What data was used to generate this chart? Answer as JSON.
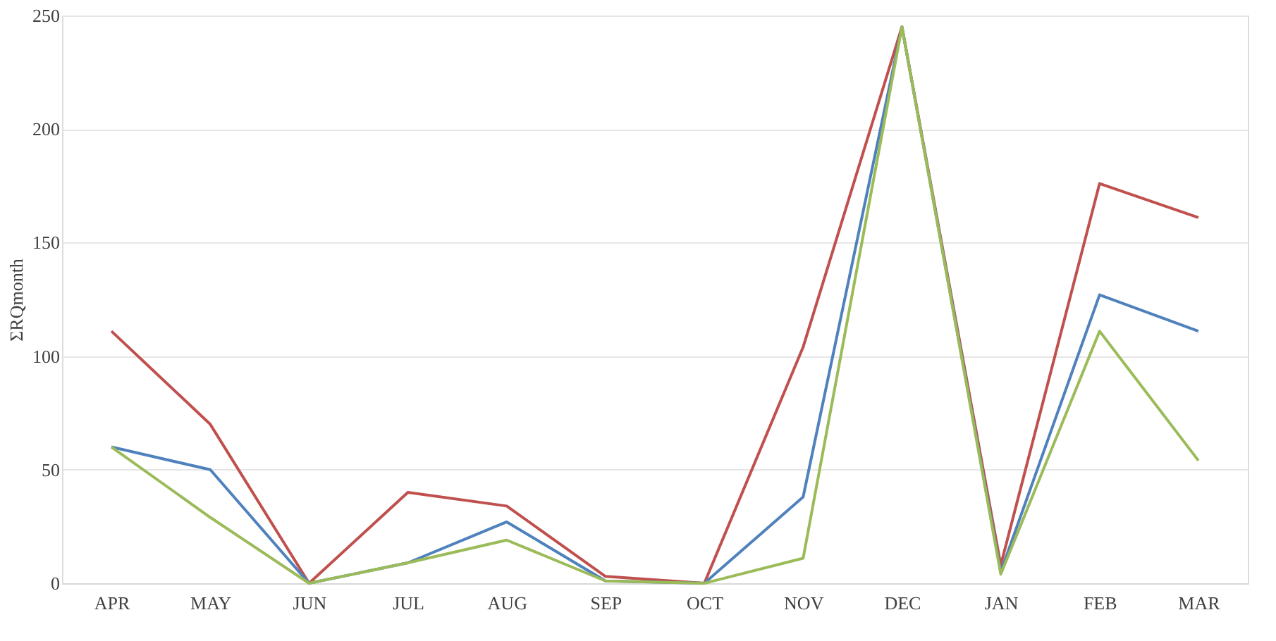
{
  "chart_data": {
    "type": "line",
    "ylabel": "ΣRQmonth",
    "categories": [
      "APR",
      "MAY",
      "JUN",
      "JUL",
      "AUG",
      "SEP",
      "OCT",
      "NOV",
      "DEC",
      "JAN",
      "FEB",
      "MAR"
    ],
    "series": [
      {
        "color": "#c0504d",
        "values": [
          111,
          70,
          0,
          40,
          34,
          3,
          0,
          104,
          245,
          8,
          176,
          161
        ]
      },
      {
        "color": "#4f81bd",
        "values": [
          60,
          50,
          0,
          9,
          27,
          1,
          0,
          38,
          245,
          5,
          127,
          111
        ]
      },
      {
        "color": "#9bbb59",
        "values": [
          60,
          29,
          0,
          9,
          19,
          1,
          0,
          11,
          245,
          4,
          111,
          54
        ]
      }
    ],
    "ylim": [
      0,
      250
    ],
    "yticks": [
      0,
      50,
      100,
      150,
      200,
      250
    ],
    "grid": "y",
    "legend": false,
    "marker": "none",
    "line_style": "solid"
  }
}
